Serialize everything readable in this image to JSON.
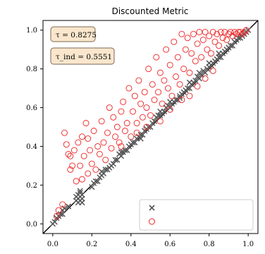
{
  "chart_data": {
    "type": "scatter",
    "title": "Discounted Metric",
    "xlim": [
      -0.05,
      1.05
    ],
    "ylim": [
      -0.05,
      1.05
    ],
    "xticks": [
      "0.0",
      "0.2",
      "0.4",
      "0.6",
      "0.8",
      "1.0"
    ],
    "yticks": [
      "0.0",
      "0.2",
      "0.4",
      "0.6",
      "0.8",
      "1.0"
    ],
    "grid": false,
    "diagonal": true,
    "legend_placement": "lower-right",
    "annotations": [
      "τ = 0.8275",
      "τ_ind = 0.5551"
    ],
    "series": [
      {
        "marker": "x",
        "color": "#555555",
        "points": [
          [
            0.0,
            0.0
          ],
          [
            0.01,
            0.01
          ],
          [
            0.02,
            0.03
          ],
          [
            0.03,
            0.04
          ],
          [
            0.04,
            0.05
          ],
          [
            0.05,
            0.05
          ],
          [
            0.05,
            0.07
          ],
          [
            0.06,
            0.08
          ],
          [
            0.08,
            0.09
          ],
          [
            0.12,
            0.12
          ],
          [
            0.12,
            0.14
          ],
          [
            0.13,
            0.13
          ],
          [
            0.13,
            0.15
          ],
          [
            0.14,
            0.12
          ],
          [
            0.14,
            0.16
          ],
          [
            0.15,
            0.13
          ],
          [
            0.15,
            0.15
          ],
          [
            0.13,
            0.11
          ],
          [
            0.14,
            0.17
          ],
          [
            0.15,
            0.11
          ],
          [
            0.2,
            0.19
          ],
          [
            0.21,
            0.21
          ],
          [
            0.22,
            0.22
          ],
          [
            0.23,
            0.22
          ],
          [
            0.24,
            0.24
          ],
          [
            0.25,
            0.25
          ],
          [
            0.26,
            0.26
          ],
          [
            0.27,
            0.28
          ],
          [
            0.28,
            0.28
          ],
          [
            0.29,
            0.29
          ],
          [
            0.3,
            0.3
          ],
          [
            0.31,
            0.31
          ],
          [
            0.32,
            0.33
          ],
          [
            0.33,
            0.33
          ],
          [
            0.34,
            0.36
          ],
          [
            0.35,
            0.35
          ],
          [
            0.36,
            0.37
          ],
          [
            0.37,
            0.38
          ],
          [
            0.38,
            0.38
          ],
          [
            0.39,
            0.4
          ],
          [
            0.4,
            0.41
          ],
          [
            0.41,
            0.42
          ],
          [
            0.42,
            0.42
          ],
          [
            0.43,
            0.44
          ],
          [
            0.44,
            0.45
          ],
          [
            0.45,
            0.46
          ],
          [
            0.46,
            0.46
          ],
          [
            0.47,
            0.48
          ],
          [
            0.48,
            0.49
          ],
          [
            0.49,
            0.5
          ],
          [
            0.5,
            0.5
          ],
          [
            0.51,
            0.52
          ],
          [
            0.52,
            0.53
          ],
          [
            0.53,
            0.55
          ],
          [
            0.54,
            0.56
          ],
          [
            0.55,
            0.56
          ],
          [
            0.56,
            0.57
          ],
          [
            0.57,
            0.58
          ],
          [
            0.58,
            0.6
          ],
          [
            0.59,
            0.61
          ],
          [
            0.6,
            0.6
          ],
          [
            0.61,
            0.62
          ],
          [
            0.62,
            0.63
          ],
          [
            0.63,
            0.64
          ],
          [
            0.64,
            0.64
          ],
          [
            0.65,
            0.66
          ],
          [
            0.66,
            0.67
          ],
          [
            0.67,
            0.68
          ],
          [
            0.68,
            0.69
          ],
          [
            0.69,
            0.7
          ],
          [
            0.7,
            0.7
          ],
          [
            0.71,
            0.72
          ],
          [
            0.72,
            0.73
          ],
          [
            0.73,
            0.74
          ],
          [
            0.74,
            0.76
          ],
          [
            0.75,
            0.75
          ],
          [
            0.76,
            0.77
          ],
          [
            0.77,
            0.79
          ],
          [
            0.78,
            0.78
          ],
          [
            0.79,
            0.8
          ],
          [
            0.8,
            0.81
          ],
          [
            0.81,
            0.82
          ],
          [
            0.82,
            0.83
          ],
          [
            0.83,
            0.84
          ],
          [
            0.84,
            0.85
          ],
          [
            0.85,
            0.86
          ],
          [
            0.86,
            0.86
          ],
          [
            0.87,
            0.88
          ],
          [
            0.88,
            0.89
          ],
          [
            0.89,
            0.9
          ],
          [
            0.9,
            0.91
          ],
          [
            0.91,
            0.92
          ],
          [
            0.92,
            0.92
          ],
          [
            0.93,
            0.94
          ],
          [
            0.94,
            0.95
          ],
          [
            0.95,
            0.96
          ],
          [
            0.96,
            0.96
          ],
          [
            0.97,
            0.97
          ],
          [
            0.98,
            0.98
          ],
          [
            0.99,
            0.99
          ],
          [
            1.0,
            1.0
          ],
          [
            0.35,
            0.37
          ],
          [
            0.45,
            0.44
          ],
          [
            0.55,
            0.58
          ],
          [
            0.65,
            0.65
          ],
          [
            0.75,
            0.78
          ],
          [
            0.85,
            0.88
          ],
          [
            0.25,
            0.27
          ],
          [
            0.6,
            0.63
          ],
          [
            0.7,
            0.73
          ],
          [
            0.8,
            0.83
          ]
        ]
      },
      {
        "marker": "o",
        "color": "#ee2222",
        "points": [
          [
            0.02,
            0.04
          ],
          [
            0.03,
            0.07
          ],
          [
            0.05,
            0.1
          ],
          [
            0.06,
            0.47
          ],
          [
            0.07,
            0.41
          ],
          [
            0.08,
            0.36
          ],
          [
            0.09,
            0.35
          ],
          [
            0.09,
            0.28
          ],
          [
            0.1,
            0.3
          ],
          [
            0.11,
            0.38
          ],
          [
            0.12,
            0.22
          ],
          [
            0.13,
            0.42
          ],
          [
            0.14,
            0.3
          ],
          [
            0.15,
            0.45
          ],
          [
            0.15,
            0.23
          ],
          [
            0.16,
            0.35
          ],
          [
            0.17,
            0.52
          ],
          [
            0.18,
            0.44
          ],
          [
            0.18,
            0.26
          ],
          [
            0.19,
            0.38
          ],
          [
            0.2,
            0.31
          ],
          [
            0.21,
            0.48
          ],
          [
            0.22,
            0.28
          ],
          [
            0.23,
            0.4
          ],
          [
            0.24,
            0.36
          ],
          [
            0.25,
            0.53
          ],
          [
            0.26,
            0.42
          ],
          [
            0.27,
            0.33
          ],
          [
            0.28,
            0.47
          ],
          [
            0.29,
            0.6
          ],
          [
            0.3,
            0.39
          ],
          [
            0.31,
            0.55
          ],
          [
            0.32,
            0.45
          ],
          [
            0.33,
            0.5
          ],
          [
            0.34,
            0.42
          ],
          [
            0.35,
            0.58
          ],
          [
            0.36,
            0.63
          ],
          [
            0.37,
            0.48
          ],
          [
            0.38,
            0.52
          ],
          [
            0.39,
            0.7
          ],
          [
            0.4,
            0.45
          ],
          [
            0.41,
            0.58
          ],
          [
            0.42,
            0.66
          ],
          [
            0.43,
            0.52
          ],
          [
            0.44,
            0.74
          ],
          [
            0.45,
            0.62
          ],
          [
            0.46,
            0.55
          ],
          [
            0.47,
            0.68
          ],
          [
            0.48,
            0.6
          ],
          [
            0.49,
            0.8
          ],
          [
            0.5,
            0.56
          ],
          [
            0.51,
            0.72
          ],
          [
            0.52,
            0.64
          ],
          [
            0.53,
            0.86
          ],
          [
            0.54,
            0.68
          ],
          [
            0.55,
            0.78
          ],
          [
            0.56,
            0.62
          ],
          [
            0.57,
            0.74
          ],
          [
            0.58,
            0.9
          ],
          [
            0.59,
            0.7
          ],
          [
            0.6,
            0.82
          ],
          [
            0.61,
            0.66
          ],
          [
            0.62,
            0.94
          ],
          [
            0.63,
            0.76
          ],
          [
            0.64,
            0.86
          ],
          [
            0.65,
            0.72
          ],
          [
            0.66,
            0.98
          ],
          [
            0.67,
            0.8
          ],
          [
            0.68,
            0.9
          ],
          [
            0.69,
            0.96
          ],
          [
            0.7,
            0.78
          ],
          [
            0.71,
            0.88
          ],
          [
            0.72,
            0.98
          ],
          [
            0.73,
            0.84
          ],
          [
            0.74,
            0.93
          ],
          [
            0.75,
            0.99
          ],
          [
            0.76,
            0.86
          ],
          [
            0.77,
            0.95
          ],
          [
            0.78,
            0.99
          ],
          [
            0.79,
            0.9
          ],
          [
            0.8,
            0.97
          ],
          [
            0.81,
            0.88
          ],
          [
            0.82,
            0.99
          ],
          [
            0.83,
            0.94
          ],
          [
            0.84,
            0.98
          ],
          [
            0.85,
            0.92
          ],
          [
            0.86,
            0.99
          ],
          [
            0.87,
            0.96
          ],
          [
            0.88,
            0.99
          ],
          [
            0.89,
            0.95
          ],
          [
            0.9,
            0.98
          ],
          [
            0.91,
            0.99
          ],
          [
            0.92,
            0.97
          ],
          [
            0.93,
            0.99
          ],
          [
            0.94,
            0.98
          ],
          [
            0.95,
            0.99
          ],
          [
            0.96,
            0.99
          ],
          [
            0.97,
            0.98
          ],
          [
            0.98,
            0.99
          ],
          [
            0.99,
            1.0
          ],
          [
            0.6,
            0.59
          ],
          [
            0.66,
            0.64
          ],
          [
            0.7,
            0.66
          ],
          [
            0.74,
            0.71
          ],
          [
            0.78,
            0.75
          ],
          [
            0.82,
            0.79
          ],
          [
            0.48,
            0.5
          ],
          [
            0.55,
            0.53
          ],
          [
            0.43,
            0.47
          ],
          [
            0.35,
            0.4
          ]
        ]
      }
    ]
  }
}
